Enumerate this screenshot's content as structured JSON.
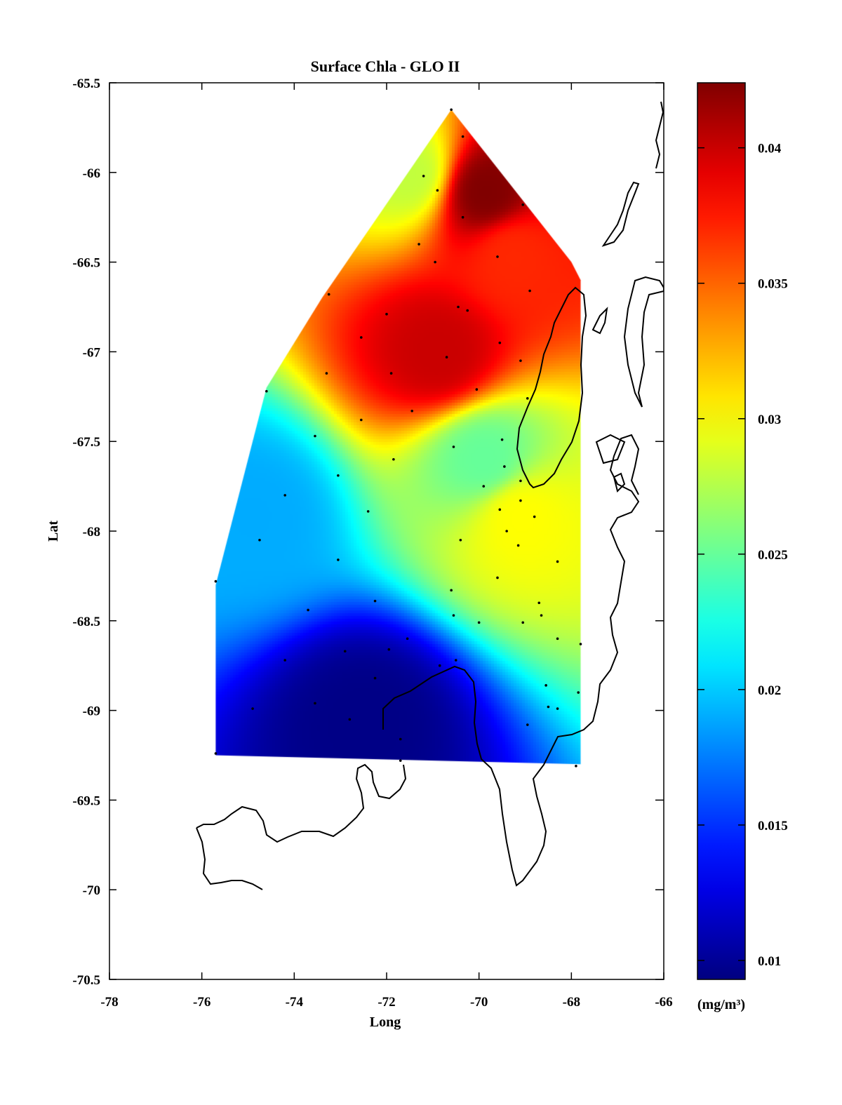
{
  "chart_data": {
    "type": "heatmap",
    "title": "Surface Chla - GLO II",
    "xlabel": "Long",
    "ylabel": "Lat",
    "xlim": [
      -78,
      -66
    ],
    "ylim": [
      -70.5,
      -65.5
    ],
    "x_ticks": [
      -78,
      -76,
      -74,
      -72,
      -70,
      -68,
      -66
    ],
    "y_ticks": [
      -65.5,
      -66,
      -66.5,
      -67,
      -67.5,
      -68,
      -68.5,
      -69,
      -69.5,
      -70,
      -70.5
    ],
    "x_tick_labels": [
      "-78",
      "-76",
      "-74",
      "-72",
      "-70",
      "-68",
      "-66"
    ],
    "y_tick_labels": [
      "-65.5",
      "-66",
      "-66.5",
      "-67",
      "-67.5",
      "-68",
      "-68.5",
      "-69",
      "-69.5",
      "-70",
      "-70.5"
    ],
    "colorbar": {
      "label": "(mg/m³)",
      "range": [
        0.0093,
        0.0424
      ],
      "ticks": [
        0.01,
        0.015,
        0.02,
        0.025,
        0.03,
        0.035,
        0.04
      ],
      "tick_labels": [
        "0.01",
        "0.015",
        "0.02",
        "0.025",
        "0.03",
        "0.035",
        "0.04"
      ],
      "colormap": "jet"
    },
    "domain_polygon": [
      [
        -70.6,
        -65.65
      ],
      [
        -68.0,
        -66.5
      ],
      [
        -67.8,
        -66.6
      ],
      [
        -67.8,
        -69.3
      ],
      [
        -75.7,
        -69.25
      ],
      [
        -75.7,
        -68.3
      ],
      [
        -74.6,
        -67.2
      ],
      [
        -73.4,
        -66.7
      ]
    ],
    "field_peaks": [
      {
        "lon": -69.9,
        "lat": -66.1,
        "value": 0.0424
      },
      {
        "lon": -70.9,
        "lat": -67.0,
        "value": 0.04
      },
      {
        "lon": -69.3,
        "lat": -66.45,
        "value": 0.037
      },
      {
        "lon": -69.15,
        "lat": -67.9,
        "value": 0.03
      },
      {
        "lon": -71.5,
        "lat": -66.0,
        "value": 0.028
      },
      {
        "lon": -69.9,
        "lat": -67.6,
        "value": 0.025
      },
      {
        "lon": -74.9,
        "lat": -67.9,
        "value": 0.019
      },
      {
        "lon": -72.5,
        "lat": -69.05,
        "value": 0.0095
      }
    ],
    "stations": [
      [
        -70.6,
        -65.65
      ],
      [
        -70.35,
        -65.8
      ],
      [
        -71.2,
        -66.02
      ],
      [
        -70.9,
        -66.1
      ],
      [
        -69.05,
        -66.18
      ],
      [
        -70.35,
        -66.25
      ],
      [
        -71.3,
        -66.4
      ],
      [
        -69.6,
        -66.47
      ],
      [
        -70.95,
        -66.5
      ],
      [
        -73.25,
        -66.68
      ],
      [
        -70.25,
        -66.77
      ],
      [
        -68.9,
        -66.66
      ],
      [
        -72.0,
        -66.79
      ],
      [
        -70.45,
        -66.75
      ],
      [
        -72.55,
        -66.92
      ],
      [
        -69.55,
        -66.95
      ],
      [
        -70.7,
        -67.03
      ],
      [
        -69.1,
        -67.05
      ],
      [
        -71.9,
        -67.12
      ],
      [
        -73.3,
        -67.12
      ],
      [
        -70.05,
        -67.21
      ],
      [
        -74.6,
        -67.22
      ],
      [
        -68.95,
        -67.26
      ],
      [
        -71.45,
        -67.33
      ],
      [
        -72.55,
        -67.38
      ],
      [
        -73.55,
        -67.47
      ],
      [
        -69.5,
        -67.49
      ],
      [
        -70.55,
        -67.53
      ],
      [
        -69.45,
        -67.64
      ],
      [
        -71.85,
        -67.6
      ],
      [
        -73.05,
        -67.69
      ],
      [
        -69.1,
        -67.72
      ],
      [
        -69.9,
        -67.75
      ],
      [
        -74.2,
        -67.8
      ],
      [
        -69.1,
        -67.83
      ],
      [
        -72.4,
        -67.89
      ],
      [
        -69.55,
        -67.88
      ],
      [
        -68.8,
        -67.92
      ],
      [
        -69.4,
        -68.0
      ],
      [
        -74.75,
        -68.05
      ],
      [
        -69.15,
        -68.08
      ],
      [
        -70.4,
        -68.05
      ],
      [
        -73.05,
        -68.16
      ],
      [
        -68.3,
        -68.17
      ],
      [
        -69.6,
        -68.26
      ],
      [
        -75.7,
        -68.28
      ],
      [
        -70.6,
        -68.33
      ],
      [
        -68.7,
        -68.4
      ],
      [
        -72.25,
        -68.39
      ],
      [
        -73.7,
        -68.44
      ],
      [
        -68.65,
        -68.47
      ],
      [
        -70.55,
        -68.47
      ],
      [
        -70.0,
        -68.51
      ],
      [
        -69.05,
        -68.51
      ],
      [
        -71.55,
        -68.6
      ],
      [
        -68.3,
        -68.6
      ],
      [
        -71.95,
        -68.66
      ],
      [
        -72.9,
        -68.67
      ],
      [
        -67.8,
        -68.63
      ],
      [
        -70.5,
        -68.72
      ],
      [
        -74.2,
        -68.72
      ],
      [
        -70.85,
        -68.75
      ],
      [
        -72.25,
        -68.82
      ],
      [
        -68.55,
        -68.86
      ],
      [
        -67.85,
        -68.9
      ],
      [
        -73.55,
        -68.96
      ],
      [
        -74.9,
        -68.99
      ],
      [
        -68.5,
        -68.98
      ],
      [
        -68.3,
        -68.99
      ],
      [
        -72.8,
        -69.05
      ],
      [
        -68.95,
        -69.08
      ],
      [
        -71.7,
        -69.16
      ],
      [
        -75.7,
        -69.24
      ],
      [
        -71.7,
        -69.28
      ],
      [
        -67.9,
        -69.31
      ]
    ]
  }
}
